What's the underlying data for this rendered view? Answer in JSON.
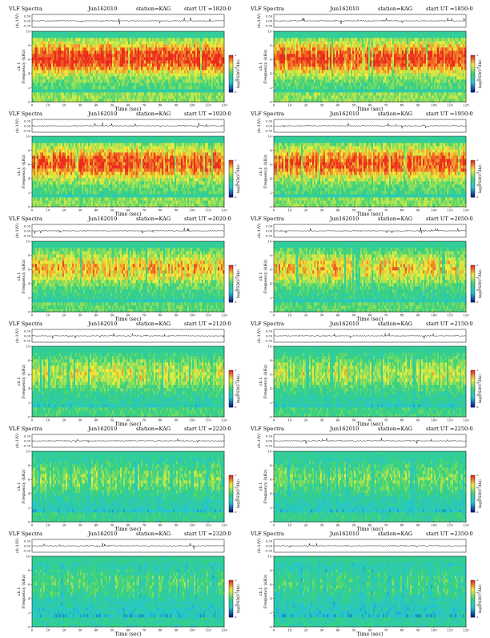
{
  "layout_text": {
    "header_prefix": "VLF Spectra",
    "station": "station=KAG",
    "start_label": "start UT =",
    "xlabel": "Time (sec)",
    "wave_ylabel": "ch.1(V)",
    "spec_ylabel_ch": "ch.1",
    "spec_ylabel": "Frequency (kHz)",
    "colorbar_label": "log(PSD(V²/Hz)"
  },
  "colors": {
    "low": "#0a1a8c",
    "mid_low": "#23c4d8",
    "mid": "#3ad27a",
    "mid_high": "#f2ee3a",
    "high": "#ec2b1d",
    "top_band": "#6ee08a"
  },
  "chart_data": [
    {
      "type": "heatmap",
      "date": "Jun162010",
      "start_time": "1820:0",
      "x_range": [
        0,
        120
      ],
      "x_ticks": [
        0,
        10,
        20,
        30,
        40,
        50,
        60,
        70,
        80,
        90,
        100,
        110,
        120
      ],
      "wave_ylim": [
        -0.3,
        0.3
      ],
      "wave_ticks": [
        "0.30",
        "0.00",
        "-0.30"
      ],
      "y_range_khz": [
        0,
        10
      ],
      "y_ticks": [
        0,
        2,
        4,
        6,
        8,
        10
      ],
      "colorbar_ticks": [
        "-3",
        "-4",
        "-5",
        "-6"
      ],
      "activity": 0.92,
      "xlabel": "Time (sec)"
    },
    {
      "type": "heatmap",
      "date": "Jun162010",
      "start_time": "1850:0",
      "x_range": [
        0,
        120
      ],
      "x_ticks": [
        0,
        10,
        20,
        30,
        40,
        50,
        60,
        70,
        80,
        90,
        100,
        110,
        120
      ],
      "wave_ylim": [
        -0.3,
        0.3
      ],
      "wave_ticks": [
        "0.30",
        "0.00",
        "-0.30"
      ],
      "y_range_khz": [
        0,
        10
      ],
      "y_ticks": [
        0,
        2,
        4,
        6,
        8,
        10
      ],
      "colorbar_ticks": [
        "-3",
        "-4",
        "-5",
        "-6"
      ],
      "activity": 0.9,
      "xlabel": "Time (sec)"
    },
    {
      "type": "heatmap",
      "date": "Jun162010",
      "start_time": "1920:0",
      "x_range": [
        0,
        120
      ],
      "x_ticks": [
        0,
        10,
        20,
        30,
        40,
        50,
        60,
        70,
        80,
        90,
        100,
        110,
        120
      ],
      "wave_ylim": [
        -0.3,
        0.3
      ],
      "wave_ticks": [
        "0.30",
        "0.00",
        "-0.30"
      ],
      "y_range_khz": [
        0,
        10
      ],
      "y_ticks": [
        0,
        2,
        4,
        6,
        8,
        10
      ],
      "colorbar_ticks": [
        "-3",
        "-4",
        "-5",
        "-6"
      ],
      "activity": 0.88,
      "xlabel": "Time (sec)"
    },
    {
      "type": "heatmap",
      "date": "Jun162010",
      "start_time": "1950:0",
      "x_range": [
        0,
        120
      ],
      "x_ticks": [
        0,
        10,
        20,
        30,
        40,
        50,
        60,
        70,
        80,
        90,
        100,
        110,
        120
      ],
      "wave_ylim": [
        -0.3,
        0.3
      ],
      "wave_ticks": [
        "0.30",
        "0.00",
        "-0.30"
      ],
      "y_range_khz": [
        0,
        10
      ],
      "y_ticks": [
        0,
        2,
        4,
        6,
        8,
        10
      ],
      "colorbar_ticks": [
        "-3",
        "-4",
        "-5",
        "-6"
      ],
      "activity": 0.86,
      "xlabel": "Time (sec)"
    },
    {
      "type": "heatmap",
      "date": "Jun162010",
      "start_time": "2020:0",
      "x_range": [
        0,
        120
      ],
      "x_ticks": [
        0,
        10,
        20,
        30,
        40,
        50,
        60,
        70,
        80,
        90,
        100,
        110,
        120
      ],
      "wave_ylim": [
        -0.3,
        0.3
      ],
      "wave_ticks": [
        "0.30",
        "0.00",
        "-0.30"
      ],
      "y_range_khz": [
        0,
        10
      ],
      "y_ticks": [
        0,
        2,
        4,
        6,
        8,
        10
      ],
      "colorbar_ticks": [
        "-3",
        "-4",
        "-5",
        "-6"
      ],
      "activity": 0.7,
      "xlabel": "Time (sec)"
    },
    {
      "type": "heatmap",
      "date": "Jun162010",
      "start_time": "2050:0",
      "x_range": [
        0,
        120
      ],
      "x_ticks": [
        0,
        10,
        20,
        30,
        40,
        50,
        60,
        70,
        80,
        90,
        100,
        110,
        120
      ],
      "wave_ylim": [
        -0.3,
        0.3
      ],
      "wave_ticks": [
        "0.30",
        "0.00",
        "-0.30"
      ],
      "y_range_khz": [
        0,
        10
      ],
      "y_ticks": [
        0,
        2,
        4,
        6,
        8,
        10
      ],
      "colorbar_ticks": [
        "-3",
        "-4",
        "-5",
        "-6"
      ],
      "activity": 0.66,
      "xlabel": "Time (sec)"
    },
    {
      "type": "heatmap",
      "date": "Jun162010",
      "start_time": "2120:0",
      "x_range": [
        0,
        120
      ],
      "x_ticks": [
        0,
        10,
        20,
        30,
        40,
        50,
        60,
        70,
        80,
        90,
        100,
        110,
        120
      ],
      "wave_ylim": [
        -0.3,
        0.3
      ],
      "wave_ticks": [
        "0.30",
        "0.00",
        "-0.30"
      ],
      "y_range_khz": [
        0,
        10
      ],
      "y_ticks": [
        0,
        2,
        4,
        6,
        8,
        10
      ],
      "colorbar_ticks": [
        "-3",
        "-4",
        "-5",
        "-6"
      ],
      "activity": 0.55,
      "xlabel": "Time (sec)"
    },
    {
      "type": "heatmap",
      "date": "Jun162010",
      "start_time": "2150:0",
      "x_range": [
        0,
        120
      ],
      "x_ticks": [
        0,
        10,
        20,
        30,
        40,
        50,
        60,
        70,
        80,
        90,
        100,
        110,
        120
      ],
      "wave_ylim": [
        -0.3,
        0.3
      ],
      "wave_ticks": [
        "0.30",
        "0.00",
        "-0.30"
      ],
      "y_range_khz": [
        0,
        10
      ],
      "y_ticks": [
        0,
        2,
        4,
        6,
        8,
        10
      ],
      "colorbar_ticks": [
        "-3",
        "-4",
        "-5",
        "-6"
      ],
      "activity": 0.52,
      "xlabel": "Time (sec)"
    },
    {
      "type": "heatmap",
      "date": "Jun162010",
      "start_time": "2220:0",
      "x_range": [
        0,
        120
      ],
      "x_ticks": [
        0,
        10,
        20,
        30,
        40,
        50,
        60,
        70,
        80,
        90,
        100,
        110,
        120
      ],
      "wave_ylim": [
        -0.3,
        0.3
      ],
      "wave_ticks": [
        "0.30",
        "0.00",
        "-0.30"
      ],
      "y_range_khz": [
        0,
        10
      ],
      "y_ticks": [
        0,
        2,
        4,
        6,
        8,
        10
      ],
      "colorbar_ticks": [
        "-3",
        "-4",
        "-5",
        "-6"
      ],
      "activity": 0.42,
      "xlabel": "Time (sec)"
    },
    {
      "type": "heatmap",
      "date": "Jun162010",
      "start_time": "2250:0",
      "x_range": [
        0,
        120
      ],
      "x_ticks": [
        0,
        10,
        20,
        30,
        40,
        50,
        60,
        70,
        80,
        90,
        100,
        110,
        120
      ],
      "wave_ylim": [
        -0.3,
        0.3
      ],
      "wave_ticks": [
        "0.30",
        "0.00",
        "-0.30"
      ],
      "y_range_khz": [
        0,
        10
      ],
      "y_ticks": [
        0,
        2,
        4,
        6,
        8,
        10
      ],
      "colorbar_ticks": [
        "-3",
        "-4",
        "-5",
        "-6"
      ],
      "activity": 0.4,
      "xlabel": "Time (sec)"
    },
    {
      "type": "heatmap",
      "date": "Jun162010",
      "start_time": "2320:0",
      "x_range": [
        0,
        120
      ],
      "x_ticks": [
        0,
        10,
        20,
        30,
        40,
        50,
        60,
        70,
        80,
        90,
        100,
        110,
        120
      ],
      "wave_ylim": [
        -0.3,
        0.3
      ],
      "wave_ticks": [
        "0.30",
        "0.00",
        "-0.30"
      ],
      "y_range_khz": [
        0,
        10
      ],
      "y_ticks": [
        0,
        2,
        4,
        6,
        8,
        10
      ],
      "colorbar_ticks": [
        "-3",
        "-4",
        "-5",
        "-6"
      ],
      "activity": 0.32,
      "xlabel": "Time (sec)"
    },
    {
      "type": "heatmap",
      "date": "Jun162010",
      "start_time": "2350:0",
      "x_range": [
        0,
        120
      ],
      "x_ticks": [
        0,
        10,
        20,
        30,
        40,
        50,
        60,
        70,
        80,
        90,
        100,
        110,
        120
      ],
      "wave_ylim": [
        -0.3,
        0.3
      ],
      "wave_ticks": [
        "0.30",
        "0.00",
        "-0.30"
      ],
      "y_range_khz": [
        0,
        10
      ],
      "y_ticks": [
        0,
        2,
        4,
        6,
        8,
        10
      ],
      "colorbar_ticks": [
        "-3",
        "-4",
        "-5",
        "-6"
      ],
      "activity": 0.3,
      "xlabel": "Time (sec)"
    }
  ]
}
